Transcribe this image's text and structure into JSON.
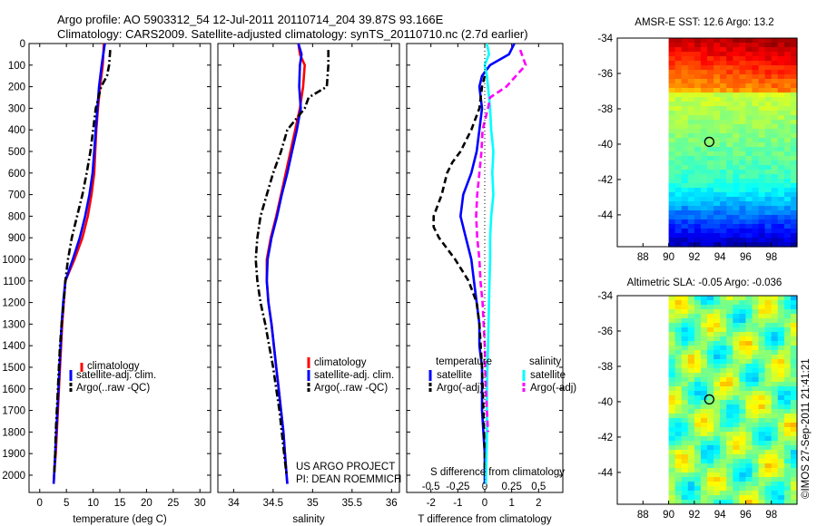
{
  "header": {
    "title_line1": "Argo profile: AO 5903312_54 12-Jul-2011 20110714_204 39.87S 93.166E",
    "title_line2": "Climatology: CARS2009. Satellite-adjusted climatology: synTS_20110710.nc (2.7d earlier)"
  },
  "chart_data": [
    {
      "id": "temperature",
      "type": "line",
      "xlabel": "temperature (deg C)",
      "ylabel": "",
      "xlim": [
        -2,
        32
      ],
      "ylim": [
        2080,
        0
      ],
      "xticks": [
        0,
        5,
        10,
        15,
        20,
        25,
        30
      ],
      "yticks": [
        0,
        100,
        200,
        300,
        400,
        500,
        600,
        700,
        800,
        900,
        1000,
        1100,
        1200,
        1300,
        1400,
        1500,
        1600,
        1700,
        1800,
        1900,
        2000
      ],
      "legend": [
        "climatology",
        "satellite-adj. clim.",
        "Argo(..raw -QC)"
      ],
      "legend_position": "lower-right",
      "series": [
        {
          "name": "climatology",
          "color": "#ff0000",
          "style": "solid",
          "depth": [
            0,
            100,
            200,
            300,
            400,
            500,
            600,
            700,
            800,
            900,
            1000,
            1100,
            1200,
            1300,
            1400,
            1500,
            1600,
            1700,
            1800,
            1900,
            2000,
            2040
          ],
          "values": [
            12.0,
            11.8,
            11.3,
            10.9,
            10.6,
            10.4,
            10.2,
            9.7,
            9.0,
            8.0,
            6.5,
            4.8,
            4.5,
            4.2,
            4.0,
            3.8,
            3.6,
            3.4,
            3.2,
            3.0,
            2.7,
            2.6
          ]
        },
        {
          "name": "satellite-adj. clim.",
          "color": "#0000ff",
          "style": "solid",
          "depth": [
            0,
            100,
            200,
            300,
            400,
            500,
            600,
            700,
            800,
            900,
            1000,
            1100,
            1200,
            1300,
            1400,
            1500,
            1600,
            1700,
            1800,
            1900,
            2000,
            2040
          ],
          "values": [
            12.2,
            11.6,
            11.1,
            10.8,
            10.5,
            10.2,
            9.9,
            9.3,
            8.5,
            7.5,
            6.2,
            4.8,
            4.4,
            4.1,
            3.9,
            3.7,
            3.5,
            3.3,
            3.1,
            2.9,
            2.7,
            2.6
          ]
        },
        {
          "name": "Argo(..raw -QC)",
          "color": "#000000",
          "style": "dashdot",
          "depth": [
            30,
            100,
            150,
            200,
            250,
            300,
            400,
            500,
            600,
            700,
            800,
            900,
            1000,
            1100,
            1200,
            1300,
            1400,
            1500,
            1600,
            1700,
            1800,
            1900,
            2000
          ],
          "values": [
            13.2,
            13.0,
            12.6,
            11.5,
            11.0,
            10.5,
            10.0,
            9.5,
            8.8,
            8.0,
            7.0,
            6.0,
            5.3,
            4.8,
            4.5,
            4.1,
            3.8,
            3.6,
            3.4,
            3.2,
            3.0,
            2.9,
            2.7
          ]
        }
      ]
    },
    {
      "id": "salinity",
      "type": "line",
      "xlabel": "salinity",
      "ylabel": "",
      "xlim": [
        33.8,
        36.1
      ],
      "ylim": [
        2080,
        0
      ],
      "xticks": [
        34,
        34.5,
        35,
        35.5,
        36
      ],
      "yticks": [],
      "legend": [
        "climatology",
        "satellite-adj. clim.",
        "Argo(..raw -QC)"
      ],
      "legend_position": "lower-right",
      "annotation": [
        "US ARGO PROJECT",
        "PI: DEAN ROEMMICH"
      ],
      "series": [
        {
          "name": "climatology",
          "color": "#ff0000",
          "style": "solid",
          "depth": [
            0,
            50,
            100,
            200,
            300,
            400,
            500,
            600,
            700,
            800,
            900,
            1000,
            1100,
            1200,
            1300,
            1400,
            1500,
            1600,
            1700,
            1800,
            1900,
            2000,
            2040
          ],
          "values": [
            34.82,
            34.84,
            34.9,
            34.88,
            34.84,
            34.78,
            34.72,
            34.66,
            34.6,
            34.54,
            34.47,
            34.42,
            34.42,
            34.44,
            34.48,
            34.51,
            34.54,
            34.57,
            34.6,
            34.63,
            34.65,
            34.67,
            34.68
          ]
        },
        {
          "name": "satellite-adj. clim.",
          "color": "#0000ff",
          "style": "solid",
          "depth": [
            0,
            50,
            100,
            200,
            300,
            400,
            500,
            600,
            700,
            800,
            900,
            1000,
            1100,
            1200,
            1300,
            1400,
            1500,
            1600,
            1700,
            1800,
            1900,
            2000,
            2040
          ],
          "values": [
            34.82,
            34.86,
            34.84,
            34.83,
            34.85,
            34.8,
            34.74,
            34.68,
            34.61,
            34.55,
            34.48,
            34.43,
            34.42,
            34.44,
            34.48,
            34.51,
            34.54,
            34.57,
            34.6,
            34.63,
            34.65,
            34.67,
            34.68
          ]
        },
        {
          "name": "Argo(..raw -QC)",
          "color": "#000000",
          "style": "dashdot",
          "depth": [
            30,
            100,
            200,
            250,
            300,
            400,
            500,
            600,
            700,
            800,
            900,
            1000,
            1100,
            1200,
            1300,
            1400,
            1500,
            1600,
            1700,
            1800,
            1900,
            2000
          ],
          "values": [
            35.2,
            35.2,
            35.18,
            34.95,
            34.9,
            34.68,
            34.6,
            34.5,
            34.42,
            34.34,
            34.3,
            34.28,
            34.3,
            34.34,
            34.4,
            34.45,
            34.5,
            34.54,
            34.58,
            34.61,
            34.64,
            34.67
          ]
        }
      ]
    },
    {
      "id": "difference",
      "type": "line",
      "xlabel": "T difference from climatology",
      "xlabel_top": "S difference from climatology",
      "ylabel": "",
      "xlim": [
        -2.9,
        2.9
      ],
      "ylim": [
        2080,
        0
      ],
      "xticks": [
        -2,
        -1,
        0,
        1,
        2
      ],
      "xticks_top": [
        "-0.5",
        "-0.25",
        "0",
        "0.25",
        "0.5"
      ],
      "yticks": [],
      "legend_groups": [
        {
          "title": "temperature",
          "entries": [
            "satellite",
            "Argo(-adj)"
          ]
        },
        {
          "title": "salinity",
          "entries": [
            "satellite",
            "Argo(-adj)"
          ]
        }
      ],
      "legend_position": "lower-center",
      "series": [
        {
          "name": "temperature satellite",
          "color": "#0000ff",
          "style": "solid",
          "depth": [
            0,
            50,
            100,
            150,
            200,
            300,
            400,
            500,
            600,
            700,
            800,
            900,
            1000,
            1100,
            1200,
            1300,
            1400,
            1500,
            1700,
            1900,
            2040
          ],
          "values": [
            1.1,
            0.9,
            0.2,
            -0.1,
            -0.2,
            -0.1,
            -0.2,
            -0.3,
            -0.5,
            -0.8,
            -0.9,
            -0.7,
            -0.5,
            -0.4,
            -0.3,
            -0.2,
            -0.2,
            -0.1,
            -0.1,
            0.0,
            0.0
          ]
        },
        {
          "name": "temperature Argo(-adj)",
          "color": "#000000",
          "style": "dashed",
          "depth": [
            150,
            200,
            300,
            400,
            500,
            550,
            600,
            700,
            800,
            850,
            900,
            1000,
            1100,
            1200,
            1300,
            1500,
            1700,
            1900,
            2000
          ],
          "values": [
            0.0,
            -0.1,
            -0.2,
            -0.5,
            -0.9,
            -1.2,
            -1.4,
            -1.6,
            -1.9,
            -1.9,
            -1.7,
            -1.1,
            -0.6,
            -0.3,
            -0.2,
            -0.1,
            -0.05,
            0.0,
            0.0
          ]
        },
        {
          "name": "salinity satellite",
          "color": "#00ffff",
          "style": "solid",
          "depth": [
            0,
            50,
            100,
            150,
            200,
            300,
            400,
            500,
            600,
            700,
            800,
            900,
            1000,
            1200,
            1400,
            1600,
            1800,
            2040
          ],
          "values": [
            0.02,
            0.04,
            0.0,
            0.02,
            0.03,
            0.05,
            0.06,
            0.08,
            0.07,
            0.08,
            0.06,
            0.05,
            0.05,
            0.04,
            0.03,
            0.02,
            0.02,
            0.01
          ]
        },
        {
          "name": "salinity Argo(-adj)",
          "color": "#ff00ff",
          "style": "dashed",
          "depth": [
            30,
            100,
            200,
            250,
            300,
            400,
            500,
            600,
            700,
            800,
            900,
            1000,
            1100,
            1200,
            1400,
            1600,
            1800
          ],
          "values": [
            0.33,
            0.38,
            0.2,
            0.05,
            0.03,
            -0.02,
            -0.03,
            -0.05,
            -0.07,
            -0.08,
            -0.07,
            -0.05,
            -0.04,
            -0.02,
            0.0,
            0.01,
            0.03
          ]
        }
      ]
    },
    {
      "id": "sst_map",
      "type": "heatmap",
      "title": "AMSR-E SST: 12.6 Argo: 13.2",
      "xlim": [
        86,
        100
      ],
      "ylim": [
        -45.8,
        -34
      ],
      "xticks": [
        88,
        90,
        92,
        94,
        96,
        98
      ],
      "yticks": [
        -34,
        -36,
        -38,
        -40,
        -42,
        -44
      ],
      "marker": {
        "lon": 93.166,
        "lat": -39.87
      },
      "data_lon_range": [
        90,
        100
      ],
      "description": "warm (red/orange) north, green middle, cool (blue) south"
    },
    {
      "id": "sla_map",
      "type": "heatmap",
      "title": "Altimetric SLA: -0.05 Argo: -0.036",
      "xlim": [
        86,
        100
      ],
      "ylim": [
        -45.8,
        -34
      ],
      "xticks": [
        88,
        90,
        92,
        94,
        96,
        98
      ],
      "yticks": [
        -34,
        -36,
        -38,
        -40,
        -42,
        -44
      ],
      "marker": {
        "lon": 93.166,
        "lat": -39.87
      },
      "data_lon_range": [
        90,
        100
      ],
      "description": "mostly green with light-green and yellow patches"
    }
  ],
  "footer": {
    "credit": "©IMOS 27-Sep-2011 21:41:21"
  },
  "colors": {
    "climatology": "#ff0000",
    "satellite_adj": "#0000ff",
    "argo": "#000000",
    "salinity_satellite": "#00ffff",
    "salinity_argo": "#ff00ff"
  }
}
